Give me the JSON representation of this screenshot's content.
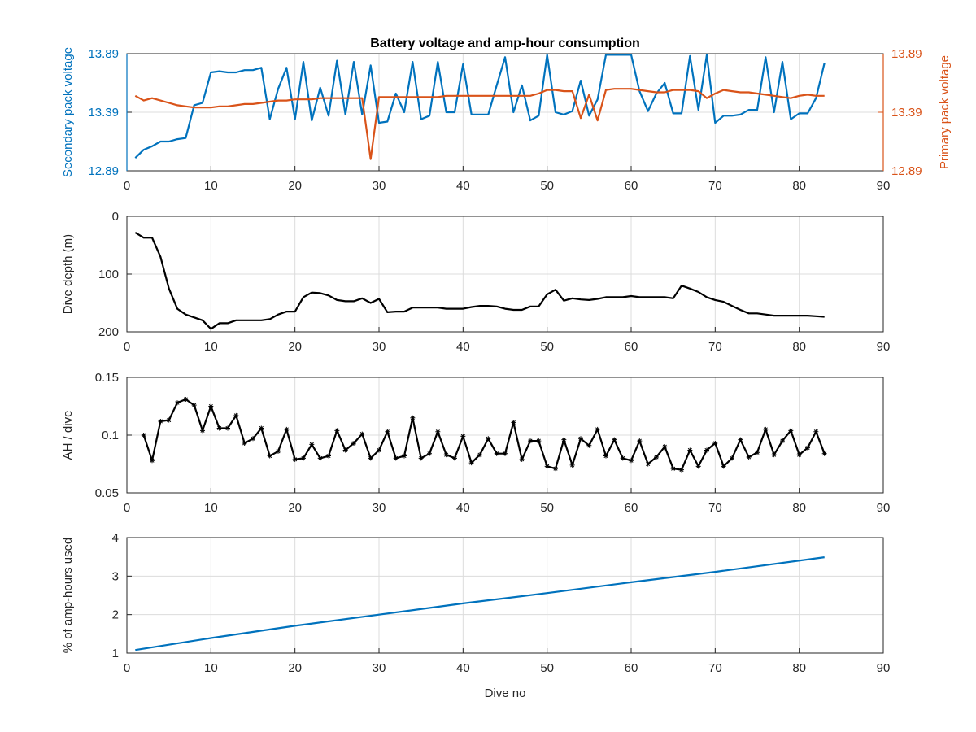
{
  "title": "Battery voltage and amp-hour consumption",
  "chart_data": [
    {
      "type": "line",
      "title": "Battery voltage and amp-hour consumption",
      "xlabel": "",
      "ylabel": "Secondary pack voltage",
      "ylabel_right": "Primary pack voltage",
      "xlim": [
        0,
        90
      ],
      "xticks": [
        0,
        10,
        20,
        30,
        40,
        50,
        60,
        70,
        80,
        90
      ],
      "ylim": [
        12.89,
        13.89
      ],
      "yticks": [
        12.89,
        13.39,
        13.89
      ],
      "ytick_labels": [
        "12.89",
        "13.39",
        "13.89"
      ],
      "ylim_right": [
        12.89,
        13.89
      ],
      "yticks_right": [
        12.89,
        13.39,
        13.89
      ],
      "ytick_labels_right": [
        "12.89",
        "13.39",
        "13.89"
      ],
      "grid": true,
      "series": [
        {
          "axis": "left",
          "color": "#0072BD",
          "x": [
            1,
            2,
            3,
            4,
            5,
            6,
            7,
            8,
            9,
            10,
            11,
            12,
            13,
            14,
            15,
            16,
            17,
            18,
            19,
            20,
            21,
            22,
            23,
            24,
            25,
            26,
            27,
            28,
            29,
            30,
            31,
            32,
            33,
            34,
            35,
            36,
            37,
            38,
            39,
            40,
            41,
            42,
            43,
            44,
            45,
            46,
            47,
            48,
            49,
            50,
            51,
            52,
            53,
            54,
            55,
            56,
            57,
            58,
            59,
            60,
            61,
            62,
            63,
            64,
            65,
            66,
            67,
            68,
            69,
            70,
            71,
            72,
            73,
            74,
            75,
            76,
            77,
            78,
            79,
            80,
            81,
            82,
            83
          ],
          "values": [
            13.0,
            13.07,
            13.1,
            13.14,
            13.14,
            13.16,
            13.17,
            13.45,
            13.47,
            13.73,
            13.74,
            13.73,
            13.73,
            13.75,
            13.75,
            13.77,
            13.33,
            13.59,
            13.77,
            13.33,
            13.82,
            13.32,
            13.6,
            13.36,
            13.83,
            13.37,
            13.82,
            13.37,
            13.79,
            13.3,
            13.31,
            13.55,
            13.39,
            13.82,
            13.33,
            13.36,
            13.82,
            13.39,
            13.39,
            13.8,
            13.37,
            13.37,
            13.37,
            13.62,
            13.86,
            13.39,
            13.62,
            13.32,
            13.36,
            13.88,
            13.39,
            13.37,
            13.4,
            13.66,
            13.36,
            13.5,
            13.88,
            13.88,
            13.88,
            13.88,
            13.57,
            13.4,
            13.55,
            13.64,
            13.38,
            13.38,
            13.87,
            13.41,
            13.88,
            13.3,
            13.36,
            13.36,
            13.37,
            13.41,
            13.41,
            13.86,
            13.39,
            13.82,
            13.33,
            13.38,
            13.38,
            13.51,
            13.81
          ]
        },
        {
          "axis": "right",
          "color": "#D95319",
          "x": [
            1,
            2,
            3,
            4,
            5,
            6,
            7,
            8,
            9,
            10,
            11,
            12,
            13,
            14,
            15,
            16,
            17,
            18,
            19,
            20,
            21,
            22,
            23,
            24,
            25,
            26,
            27,
            28,
            29,
            30,
            31,
            32,
            33,
            34,
            35,
            36,
            37,
            38,
            39,
            40,
            41,
            42,
            43,
            44,
            45,
            46,
            47,
            48,
            49,
            50,
            51,
            52,
            53,
            54,
            55,
            56,
            57,
            58,
            59,
            60,
            61,
            62,
            63,
            64,
            65,
            66,
            67,
            68,
            69,
            70,
            71,
            72,
            73,
            74,
            75,
            76,
            77,
            78,
            79,
            80,
            81,
            82,
            83
          ],
          "values": [
            13.53,
            13.49,
            13.51,
            13.49,
            13.47,
            13.45,
            13.44,
            13.43,
            13.43,
            13.43,
            13.44,
            13.44,
            13.45,
            13.46,
            13.46,
            13.47,
            13.48,
            13.49,
            13.49,
            13.5,
            13.5,
            13.5,
            13.51,
            13.51,
            13.51,
            13.51,
            13.51,
            13.51,
            12.99,
            13.52,
            13.52,
            13.52,
            13.52,
            13.52,
            13.52,
            13.52,
            13.52,
            13.53,
            13.53,
            13.53,
            13.53,
            13.53,
            13.53,
            13.53,
            13.53,
            13.53,
            13.53,
            13.53,
            13.55,
            13.58,
            13.58,
            13.57,
            13.57,
            13.34,
            13.54,
            13.32,
            13.58,
            13.59,
            13.59,
            13.59,
            13.58,
            13.57,
            13.56,
            13.56,
            13.58,
            13.58,
            13.58,
            13.57,
            13.51,
            13.55,
            13.58,
            13.57,
            13.56,
            13.56,
            13.55,
            13.54,
            13.53,
            13.52,
            13.51,
            13.53,
            13.54,
            13.53,
            13.53
          ]
        }
      ]
    },
    {
      "type": "line",
      "xlabel": "",
      "ylabel": "Dive depth (m)",
      "xlim": [
        0,
        90
      ],
      "xticks": [
        0,
        10,
        20,
        30,
        40,
        50,
        60,
        70,
        80,
        90
      ],
      "ylim": [
        0,
        200
      ],
      "yticks": [
        0,
        100,
        200
      ],
      "ytick_labels": [
        "0",
        "100",
        "200"
      ],
      "y_reversed": true,
      "grid": true,
      "series": [
        {
          "color": "#000000",
          "x": [
            1,
            2,
            3,
            4,
            5,
            6,
            7,
            8,
            9,
            10,
            11,
            12,
            13,
            14,
            15,
            16,
            17,
            18,
            19,
            20,
            21,
            22,
            23,
            24,
            25,
            26,
            27,
            28,
            29,
            30,
            31,
            32,
            33,
            34,
            35,
            36,
            37,
            38,
            39,
            40,
            41,
            42,
            43,
            44,
            45,
            46,
            47,
            48,
            49,
            50,
            51,
            52,
            53,
            54,
            55,
            56,
            57,
            58,
            59,
            60,
            61,
            62,
            63,
            64,
            65,
            66,
            67,
            68,
            69,
            70,
            71,
            72,
            73,
            74,
            75,
            76,
            77,
            78,
            79,
            80,
            81,
            82,
            83
          ],
          "values": [
            28,
            37,
            37,
            70,
            125,
            160,
            170,
            175,
            180,
            195,
            185,
            185,
            180,
            180,
            180,
            180,
            178,
            170,
            165,
            165,
            140,
            132,
            133,
            137,
            145,
            147,
            147,
            142,
            150,
            143,
            166,
            165,
            165,
            158,
            158,
            158,
            158,
            160,
            160,
            160,
            157,
            155,
            155,
            156,
            160,
            162,
            162,
            156,
            156,
            135,
            127,
            146,
            142,
            144,
            145,
            143,
            140,
            140,
            140,
            138,
            140,
            140,
            140,
            140,
            142,
            120,
            125,
            131,
            140,
            145,
            148,
            155,
            162,
            168,
            168,
            170,
            172,
            172,
            172,
            172,
            172,
            173,
            174
          ]
        }
      ]
    },
    {
      "type": "line",
      "xlabel": "",
      "ylabel": "AH / dive",
      "xlim": [
        0,
        90
      ],
      "xticks": [
        0,
        10,
        20,
        30,
        40,
        50,
        60,
        70,
        80,
        90
      ],
      "ylim": [
        0.05,
        0.15
      ],
      "yticks": [
        0.05,
        0.1,
        0.15
      ],
      "ytick_labels": [
        "0.05",
        "0.1",
        "0.15"
      ],
      "marker": "*",
      "grid": true,
      "series": [
        {
          "color": "#000000",
          "x": [
            2,
            3,
            4,
            5,
            6,
            7,
            8,
            9,
            10,
            11,
            12,
            13,
            14,
            15,
            16,
            17,
            18,
            19,
            20,
            21,
            22,
            23,
            24,
            25,
            26,
            27,
            28,
            29,
            30,
            31,
            32,
            33,
            34,
            35,
            36,
            37,
            38,
            39,
            40,
            41,
            42,
            43,
            44,
            45,
            46,
            47,
            48,
            49,
            50,
            51,
            52,
            53,
            54,
            55,
            56,
            57,
            58,
            59,
            60,
            61,
            62,
            63,
            64,
            65,
            66,
            67,
            68,
            69,
            70,
            71,
            72,
            73,
            74,
            75,
            76,
            77,
            78,
            79,
            80,
            81,
            82,
            83
          ],
          "values": [
            0.1,
            0.078,
            0.112,
            0.113,
            0.128,
            0.131,
            0.126,
            0.104,
            0.125,
            0.106,
            0.106,
            0.117,
            0.093,
            0.097,
            0.106,
            0.082,
            0.086,
            0.105,
            0.079,
            0.08,
            0.092,
            0.08,
            0.082,
            0.104,
            0.087,
            0.093,
            0.101,
            0.08,
            0.087,
            0.103,
            0.08,
            0.082,
            0.115,
            0.08,
            0.084,
            0.103,
            0.083,
            0.08,
            0.099,
            0.076,
            0.083,
            0.097,
            0.084,
            0.084,
            0.111,
            0.079,
            0.095,
            0.095,
            0.073,
            0.071,
            0.096,
            0.074,
            0.097,
            0.091,
            0.105,
            0.082,
            0.096,
            0.08,
            0.078,
            0.095,
            0.075,
            0.081,
            0.09,
            0.071,
            0.07,
            0.087,
            0.073,
            0.087,
            0.093,
            0.073,
            0.08,
            0.096,
            0.081,
            0.085,
            0.105,
            0.083,
            0.095,
            0.104,
            0.083,
            0.089,
            0.103,
            0.084
          ]
        }
      ]
    },
    {
      "type": "line",
      "xlabel": "Dive no",
      "ylabel": "% of amp-hours used",
      "xlim": [
        0,
        90
      ],
      "xticks": [
        0,
        10,
        20,
        30,
        40,
        50,
        60,
        70,
        80,
        90
      ],
      "ylim": [
        1,
        4
      ],
      "yticks": [
        1,
        2,
        3,
        4
      ],
      "ytick_labels": [
        "1",
        "2",
        "3",
        "4"
      ],
      "grid": true,
      "series": [
        {
          "color": "#0072BD",
          "x": [
            1,
            10,
            20,
            30,
            40,
            50,
            60,
            70,
            83
          ],
          "values": [
            1.08,
            1.39,
            1.71,
            2.0,
            2.29,
            2.56,
            2.84,
            3.11,
            3.49
          ]
        }
      ]
    }
  ]
}
